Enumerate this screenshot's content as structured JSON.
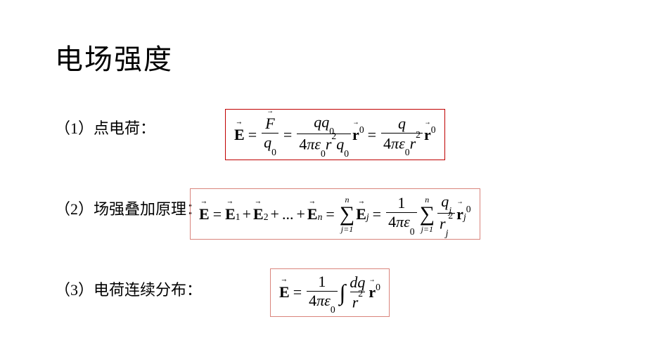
{
  "title": "电场强度",
  "items": [
    {
      "label": "（1）点电荷："
    },
    {
      "label": "（2）场强叠加原理："
    },
    {
      "label": "（3）电荷连续分布："
    }
  ],
  "eq1": {
    "lhs": "E",
    "t1_top": "F",
    "t1_bot_q": "q",
    "t1_bot_sub": "0",
    "t2_top_q1": "q",
    "t2_top_q2": "q",
    "t2_top_sub": "0",
    "t2_bot_4": "4",
    "t2_bot_pi": "π",
    "t2_bot_eps": "ε",
    "t2_bot_eps_sub": "0",
    "t2_bot_r": "r",
    "t2_bot_r_sup": "2",
    "t2_bot_q": "q",
    "t2_bot_q_sub": "0",
    "r0": "r",
    "r0_sup": "0",
    "t3_top_q": "q",
    "t3_bot_4": "4",
    "t3_bot_pi": "π",
    "t3_bot_eps": "ε",
    "t3_bot_eps_sub": "0",
    "t3_bot_r": "r",
    "t3_bot_r_sup": "2"
  },
  "eq2": {
    "E": "E",
    "sub1": "1",
    "sub2": "2",
    "subn": "n",
    "subj": "j",
    "dots": "...",
    "sum_top": "n",
    "sum_bot": "j=1",
    "one": "1",
    "four": "4",
    "pi": "π",
    "eps": "ε",
    "eps_sub": "0",
    "q": "q",
    "q_sub": "j",
    "r": "r",
    "r_sub": "j",
    "r_sup": "2",
    "rhat": "r",
    "rhat_sub": "j",
    "rhat_sup": "0"
  },
  "eq3": {
    "E": "E",
    "one": "1",
    "four": "4",
    "pi": "π",
    "eps": "ε",
    "eps_sub": "0",
    "dq_d": "d",
    "dq_q": "q",
    "r": "r",
    "r_sup": "2",
    "rhat": "r",
    "rhat_sup": "0"
  },
  "colors": {
    "border_strong": "#c00000",
    "border_light": "#d9847c",
    "text": "#000000",
    "background": "#ffffff"
  }
}
